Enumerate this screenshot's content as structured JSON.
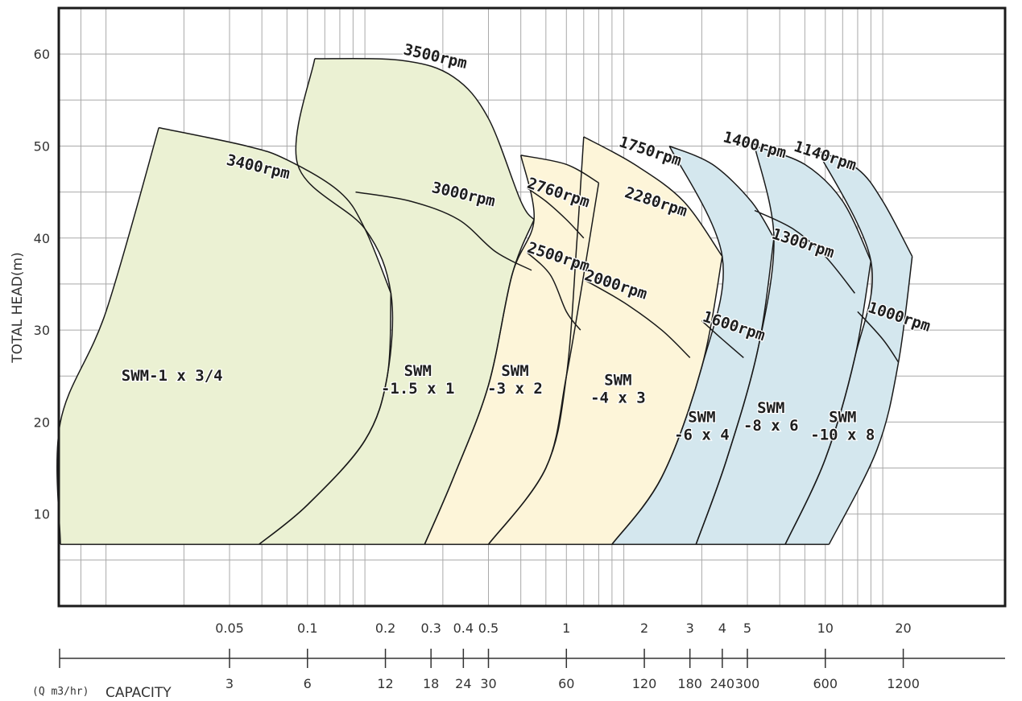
{
  "chart_data": {
    "type": "area",
    "title": "",
    "ylabel": "TOTAL HEAD(m)",
    "xlabel": "CAPACITY",
    "unit_label": "(Q m3/hr)",
    "x_scale": "log",
    "xlim": [
      0.2,
      1200
    ],
    "ylim": [
      0,
      65
    ],
    "grid": true,
    "secondary_axis_label": "",
    "y_ticks": [
      "10",
      "20",
      "30",
      "40",
      "50",
      "60"
    ],
    "x_ticks_m3h": [
      "3",
      "6",
      "12",
      "18",
      "24",
      "30",
      "60",
      "120",
      "180",
      "240",
      "300",
      "600",
      "1200"
    ],
    "x_ticks_top": [
      "0.05",
      "0.1",
      "0.2",
      "0.3",
      "0.4",
      "0.5",
      "1",
      "2",
      "3",
      "4",
      "5",
      "10",
      "20"
    ],
    "x_grid_m3h": [
      0.6,
      0.8,
      1,
      2,
      3,
      4,
      5,
      6,
      7,
      8,
      9,
      10,
      20,
      30,
      40,
      50,
      60,
      70,
      80,
      90,
      100,
      200,
      300,
      400,
      500,
      600,
      700,
      800,
      900,
      1000
    ],
    "y_grid": [
      5,
      10,
      15,
      20,
      25,
      30,
      35,
      40,
      45,
      50,
      55,
      60,
      65
    ],
    "baseline_head": 6.7,
    "regions": [
      {
        "model": [
          "SWM-1 x 3/4"
        ],
        "color": "#ebf1d3",
        "label_at": [
          1.8,
          24.5
        ],
        "left_edge": [
          [
            0.2,
            6.7
          ],
          [
            0.55,
            20
          ],
          [
            1,
            32
          ],
          [
            1.6,
            52
          ]
        ],
        "top_edge": [
          [
            1.6,
            52
          ],
          [
            3.5,
            50
          ],
          [
            5,
            48.5
          ],
          [
            8,
            45
          ],
          [
            10,
            41
          ],
          [
            12.6,
            34
          ]
        ],
        "right_edge": [
          [
            12.6,
            34
          ],
          [
            12.2,
            25
          ],
          [
            10,
            18
          ],
          [
            6,
            11
          ],
          [
            3.9,
            6.7
          ]
        ]
      },
      {
        "model": [
          "SWM",
          "-1.5 x 1"
        ],
        "color": "#ebf1d3",
        "label_at": [
          16,
          25
        ],
        "left_edge": [
          [
            3.9,
            6.7
          ],
          [
            6,
            11
          ],
          [
            10,
            18
          ],
          [
            12.2,
            25
          ],
          [
            12.6,
            34
          ],
          [
            10,
            41
          ],
          [
            5.5,
            48
          ],
          [
            6.4,
            59.5
          ]
        ],
        "top_edge": [
          [
            6.4,
            59.5
          ],
          [
            14,
            59.3
          ],
          [
            22,
            57.5
          ],
          [
            30,
            53
          ],
          [
            40,
            44
          ],
          [
            45,
            42
          ]
        ],
        "right_edge": [
          [
            45,
            42
          ],
          [
            37,
            36
          ],
          [
            30,
            24
          ],
          [
            22,
            14
          ],
          [
            17,
            6.7
          ]
        ]
      },
      {
        "model": [
          "SWM",
          "-3 x 2"
        ],
        "color": "#fdf5d9",
        "label_at": [
          38,
          25
        ],
        "left_edge": [
          [
            17,
            6.7
          ],
          [
            22,
            14
          ],
          [
            30,
            24
          ],
          [
            37,
            36
          ],
          [
            45,
            42
          ],
          [
            40,
            49
          ]
        ],
        "top_edge": [
          [
            40,
            49
          ],
          [
            60,
            48
          ],
          [
            80,
            46
          ]
        ],
        "right_edge": [
          [
            80,
            46
          ],
          [
            70,
            36
          ],
          [
            60,
            25
          ],
          [
            50,
            15
          ],
          [
            30,
            6.7
          ]
        ]
      },
      {
        "model": [
          "SWM",
          "-4 x 3"
        ],
        "color": "#fdf5d9",
        "label_at": [
          95,
          24
        ],
        "left_edge": [
          [
            30,
            6.7
          ],
          [
            50,
            15
          ],
          [
            60,
            25
          ],
          [
            66,
            40
          ],
          [
            70,
            51
          ]
        ],
        "top_edge": [
          [
            70,
            51
          ],
          [
            110,
            48
          ],
          [
            170,
            44
          ],
          [
            240,
            38
          ]
        ],
        "right_edge": [
          [
            240,
            38
          ],
          [
            200,
            26
          ],
          [
            140,
            14
          ],
          [
            90,
            6.7
          ]
        ]
      },
      {
        "model": [
          "SWM",
          "-6 x 4"
        ],
        "color": "#d4e7ee",
        "label_at": [
          200,
          20
        ],
        "left_edge": [
          [
            90,
            6.7
          ],
          [
            140,
            14
          ],
          [
            200,
            26
          ],
          [
            240,
            38
          ],
          [
            150,
            50
          ]
        ],
        "top_edge": [
          [
            150,
            50
          ],
          [
            220,
            48
          ],
          [
            310,
            44
          ],
          [
            380,
            40
          ]
        ],
        "right_edge": [
          [
            380,
            40
          ],
          [
            330,
            28
          ],
          [
            250,
            16
          ],
          [
            190,
            6.7
          ]
        ]
      },
      {
        "model": [
          "SWM",
          "-8 x 6"
        ],
        "color": "#d4e7ee",
        "label_at": [
          370,
          21
        ],
        "left_edge": [
          [
            190,
            6.7
          ],
          [
            250,
            16
          ],
          [
            330,
            28
          ],
          [
            380,
            40
          ],
          [
            320,
            50
          ]
        ],
        "top_edge": [
          [
            320,
            50
          ],
          [
            500,
            48
          ],
          [
            700,
            44
          ],
          [
            900,
            37.5
          ]
        ],
        "right_edge": [
          [
            900,
            37.5
          ],
          [
            780,
            27
          ],
          [
            600,
            16
          ],
          [
            420,
            6.7
          ]
        ]
      },
      {
        "model": [
          "SWM",
          "-10 x 8"
        ],
        "color": "#d4e7ee",
        "label_at": [
          700,
          20
        ],
        "left_edge": [
          [
            420,
            6.7
          ],
          [
            600,
            16
          ],
          [
            780,
            27
          ],
          [
            900,
            37.5
          ],
          [
            560,
            49.5
          ]
        ],
        "top_edge": [
          [
            560,
            49.5
          ],
          [
            800,
            47.5
          ],
          [
            1000,
            44
          ],
          [
            1300,
            38
          ]
        ],
        "right_edge": [
          [
            1300,
            38
          ],
          [
            1150,
            26.5
          ],
          [
            950,
            17
          ],
          [
            620,
            6.7
          ]
        ]
      }
    ],
    "speed_curves": [
      {
        "label": "3400rpm",
        "label_at": [
          2.9,
          48
        ],
        "label_angle": 13,
        "points": []
      },
      {
        "label": "3500rpm",
        "label_at": [
          14,
          60
        ],
        "label_angle": 13,
        "points": []
      },
      {
        "label": "3000rpm",
        "label_at": [
          18,
          45
        ],
        "label_angle": 13,
        "points": [
          [
            9.2,
            45
          ],
          [
            15,
            44
          ],
          [
            23,
            42
          ],
          [
            32,
            38.5
          ],
          [
            44,
            36.5
          ]
        ]
      },
      {
        "label": "2760rpm",
        "label_at": [
          42,
          45.5
        ],
        "label_angle": 18,
        "points": [
          [
            42,
            45.5
          ],
          [
            50,
            44
          ],
          [
            60,
            42
          ],
          [
            70,
            40
          ]
        ]
      },
      {
        "label": "2500rpm",
        "label_at": [
          42,
          38.5
        ],
        "label_angle": 18,
        "points": [
          [
            42,
            38.5
          ],
          [
            52,
            36
          ],
          [
            60,
            32
          ],
          [
            68,
            30
          ]
        ]
      },
      {
        "label": "2000rpm",
        "label_at": [
          70,
          35.5
        ],
        "label_angle": 18,
        "points": [
          [
            70,
            35.5
          ],
          [
            100,
            33
          ],
          [
            140,
            30
          ],
          [
            180,
            27
          ]
        ]
      },
      {
        "label": "2280rpm",
        "label_at": [
          100,
          44.5
        ],
        "label_angle": 18,
        "points": []
      },
      {
        "label": "1750rpm",
        "label_at": [
          95,
          50
        ],
        "label_angle": 18,
        "points": []
      },
      {
        "label": "1600rpm",
        "label_at": [
          200,
          31
        ],
        "label_angle": 18,
        "points": [
          [
            200,
            31
          ],
          [
            240,
            29
          ],
          [
            290,
            27
          ]
        ]
      },
      {
        "label": "1400rpm",
        "label_at": [
          240,
          50.5
        ],
        "label_angle": 15,
        "points": []
      },
      {
        "label": "1300rpm",
        "label_at": [
          370,
          40
        ],
        "label_angle": 18,
        "points": [
          [
            320,
            43
          ],
          [
            450,
            41
          ],
          [
            600,
            38
          ],
          [
            780,
            34
          ]
        ]
      },
      {
        "label": "1140rpm",
        "label_at": [
          450,
          49.5
        ],
        "label_angle": 18,
        "points": []
      },
      {
        "label": "1000rpm",
        "label_at": [
          870,
          32
        ],
        "label_angle": 18,
        "points": [
          [
            800,
            32
          ],
          [
            1000,
            29
          ],
          [
            1150,
            26.5
          ]
        ]
      }
    ]
  }
}
